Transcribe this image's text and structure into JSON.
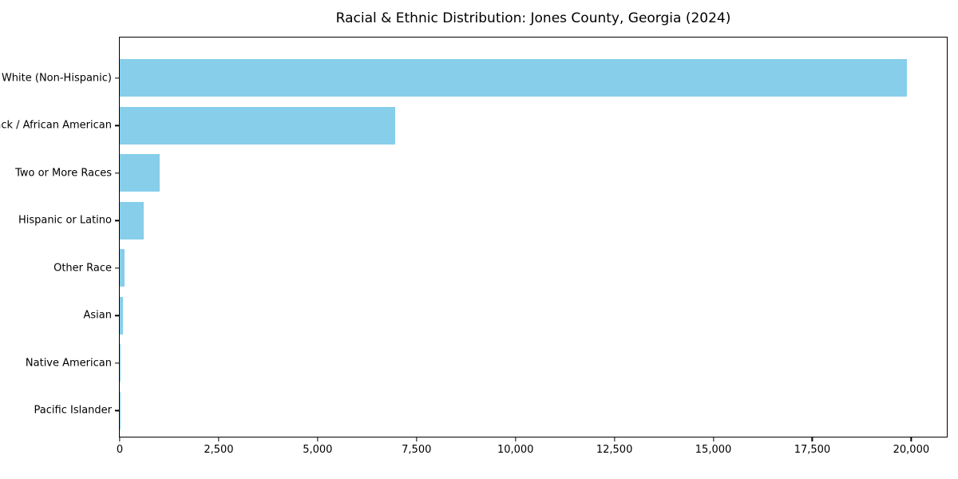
{
  "title": "Racial & Ethnic Distribution: Jones County, Georgia (2024)",
  "colors": {
    "bar": "#87CEEB",
    "spine": "#000000",
    "text": "#000000",
    "background": "#ffffff"
  },
  "chart_data": {
    "type": "bar",
    "orientation": "horizontal",
    "title": "Racial & Ethnic Distribution: Jones County, Georgia (2024)",
    "xlabel": "",
    "ylabel": "",
    "categories": [
      "White (Non-Hispanic)",
      "Black / African American",
      "Two or More Races",
      "Hispanic or Latino",
      "Other Race",
      "Asian",
      "Native American",
      "Pacific Islander"
    ],
    "values": [
      19900,
      6960,
      1010,
      610,
      115,
      75,
      25,
      5
    ],
    "xlim": [
      0,
      20900
    ],
    "xticks": [
      0,
      2500,
      5000,
      7500,
      10000,
      12500,
      15000,
      17500,
      20000
    ],
    "xtick_labels": [
      "0",
      "2,500",
      "5,000",
      "7,500",
      "10,000",
      "12,500",
      "15,000",
      "17,500",
      "20,000"
    ],
    "grid": false,
    "legend": null,
    "bar_color": "#87CEEB"
  }
}
